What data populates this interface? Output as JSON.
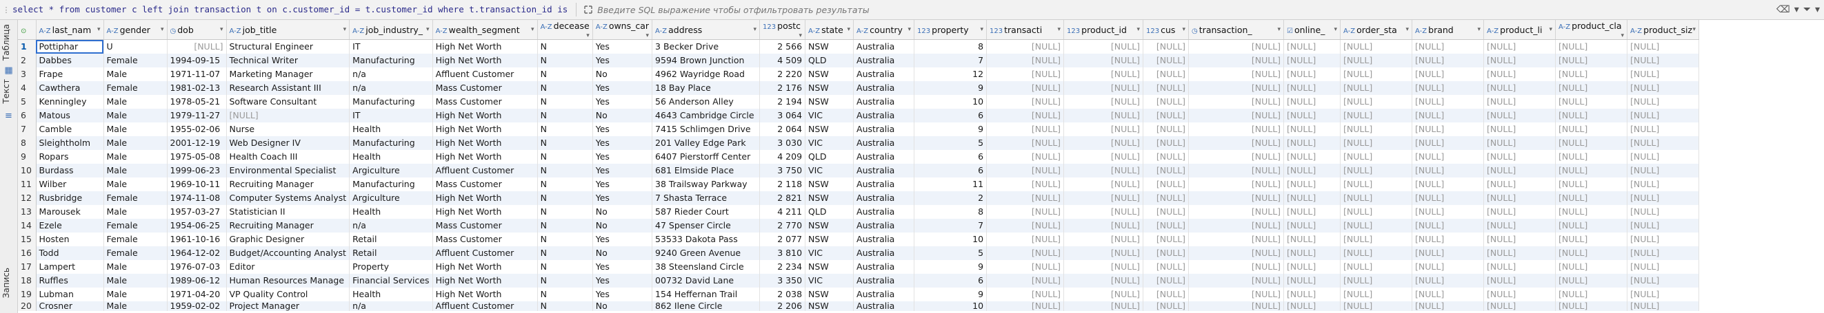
{
  "filter_bar": {
    "sql": "select * from customer c left join transaction t on c.customer_id = t.customer_id where t.transaction_id is",
    "placeholder": "Введите SQL выражение чтобы отфильтровать результаты"
  },
  "side_panel": {
    "tab_table": "Таблица",
    "tab_text": "Текст",
    "tab_record": "Запись"
  },
  "columns": [
    {
      "label": "last_nam",
      "type": "az"
    },
    {
      "label": "gender",
      "type": "az"
    },
    {
      "label": "dob",
      "type": "date"
    },
    {
      "label": "job_title",
      "type": "az"
    },
    {
      "label": "job_industry_",
      "type": "az"
    },
    {
      "label": "wealth_segment",
      "type": "az"
    },
    {
      "label": "decease",
      "type": "az"
    },
    {
      "label": "owns_car",
      "type": "az"
    },
    {
      "label": "address",
      "type": "az"
    },
    {
      "label": "postc",
      "type": "123"
    },
    {
      "label": "state",
      "type": "az"
    },
    {
      "label": "country",
      "type": "az"
    },
    {
      "label": "property",
      "type": "123"
    },
    {
      "label": "transacti",
      "type": "123"
    },
    {
      "label": "product_id",
      "type": "123"
    },
    {
      "label": "cus",
      "type": "123"
    },
    {
      "label": "transaction_",
      "type": "date"
    },
    {
      "label": "online_",
      "type": "check"
    },
    {
      "label": "order_sta",
      "type": "az"
    },
    {
      "label": "brand",
      "type": "az"
    },
    {
      "label": "product_li",
      "type": "az"
    },
    {
      "label": "product_cla",
      "type": "az"
    },
    {
      "label": "product_siz",
      "type": "az"
    }
  ],
  "null_text": "[NULL]",
  "rows": [
    [
      "1",
      "Pottiphar",
      "U",
      "[NULL]",
      "Structural Engineer",
      "IT",
      "High Net Worth",
      "N",
      "Yes",
      "3 Becker Drive",
      "2 566",
      "NSW",
      "Australia",
      "8"
    ],
    [
      "2",
      "Dabbes",
      "Female",
      "1994-09-15",
      "Technical Writer",
      "Manufacturing",
      "High Net Worth",
      "N",
      "Yes",
      "9594 Brown Junction",
      "4 509",
      "QLD",
      "Australia",
      "7"
    ],
    [
      "3",
      "Frape",
      "Male",
      "1971-11-07",
      "Marketing Manager",
      "n/a",
      "Affluent Customer",
      "N",
      "No",
      "4962 Wayridge Road",
      "2 220",
      "NSW",
      "Australia",
      "12"
    ],
    [
      "4",
      "Cawthera",
      "Female",
      "1981-02-13",
      "Research Assistant III",
      "n/a",
      "Mass Customer",
      "N",
      "Yes",
      "18 Bay Place",
      "2 176",
      "NSW",
      "Australia",
      "9"
    ],
    [
      "5",
      "Kenningley",
      "Male",
      "1978-05-21",
      "Software Consultant",
      "Manufacturing",
      "Mass Customer",
      "N",
      "Yes",
      "56 Anderson Alley",
      "2 194",
      "NSW",
      "Australia",
      "10"
    ],
    [
      "6",
      "Matous",
      "Male",
      "1979-11-27",
      "[NULL]",
      "IT",
      "High Net Worth",
      "N",
      "No",
      "4643 Cambridge Circle",
      "3 064",
      "VIC",
      "Australia",
      "6"
    ],
    [
      "7",
      "Camble",
      "Male",
      "1955-02-06",
      "Nurse",
      "Health",
      "High Net Worth",
      "N",
      "Yes",
      "7415 Schlimgen Drive",
      "2 064",
      "NSW",
      "Australia",
      "9"
    ],
    [
      "8",
      "Sleightholm",
      "Male",
      "2001-12-19",
      "Web Designer IV",
      "Manufacturing",
      "High Net Worth",
      "N",
      "Yes",
      "201 Valley Edge Park",
      "3 030",
      "VIC",
      "Australia",
      "5"
    ],
    [
      "9",
      "Ropars",
      "Male",
      "1975-05-08",
      "Health Coach III",
      "Health",
      "High Net Worth",
      "N",
      "Yes",
      "6407 Pierstorff Center",
      "4 209",
      "QLD",
      "Australia",
      "6"
    ],
    [
      "10",
      "Burdass",
      "Male",
      "1999-06-23",
      "Environmental Specialist",
      "Argiculture",
      "Affluent Customer",
      "N",
      "Yes",
      "681 Elmside Place",
      "3 750",
      "VIC",
      "Australia",
      "6"
    ],
    [
      "11",
      "Wilber",
      "Male",
      "1969-10-11",
      "Recruiting Manager",
      "Manufacturing",
      "Mass Customer",
      "N",
      "Yes",
      "38 Trailsway Parkway",
      "2 118",
      "NSW",
      "Australia",
      "11"
    ],
    [
      "12",
      "Rusbridge",
      "Female",
      "1974-11-08",
      "Computer Systems Analyst",
      "Argiculture",
      "High Net Worth",
      "N",
      "Yes",
      "7 Shasta Terrace",
      "2 821",
      "NSW",
      "Australia",
      "2"
    ],
    [
      "13",
      "Marousek",
      "Male",
      "1957-03-27",
      "Statistician II",
      "Health",
      "High Net Worth",
      "N",
      "No",
      "587 Rieder Court",
      "4 211",
      "QLD",
      "Australia",
      "8"
    ],
    [
      "14",
      "Ezele",
      "Female",
      "1954-06-25",
      "Recruiting Manager",
      "n/a",
      "Mass Customer",
      "N",
      "No",
      "47 Spenser Circle",
      "2 770",
      "NSW",
      "Australia",
      "7"
    ],
    [
      "15",
      "Hosten",
      "Female",
      "1961-10-16",
      "Graphic Designer",
      "Retail",
      "Mass Customer",
      "N",
      "Yes",
      "53533 Dakota Pass",
      "2 077",
      "NSW",
      "Australia",
      "10"
    ],
    [
      "16",
      "Todd",
      "Female",
      "1964-12-02",
      "Budget/Accounting Analyst",
      "Retail",
      "Affluent Customer",
      "N",
      "No",
      "9240 Green Avenue",
      "3 810",
      "VIC",
      "Australia",
      "5"
    ],
    [
      "17",
      "Lampert",
      "Male",
      "1976-07-03",
      "Editor",
      "Property",
      "High Net Worth",
      "N",
      "Yes",
      "38 Steensland Circle",
      "2 234",
      "NSW",
      "Australia",
      "9"
    ],
    [
      "18",
      "Ruffles",
      "Male",
      "1989-06-12",
      "Human Resources Manage",
      "Financial Services",
      "High Net Worth",
      "N",
      "Yes",
      "00732 David Lane",
      "3 350",
      "VIC",
      "Australia",
      "6"
    ],
    [
      "19",
      "Lubman",
      "Male",
      "1971-04-20",
      "VP Quality Control",
      "Health",
      "High Net Worth",
      "N",
      "Yes",
      "154 Heffernan Trail",
      "2 038",
      "NSW",
      "Australia",
      "9"
    ],
    [
      "20",
      "Crosner",
      "Male",
      "1959-02-02",
      "Project Manager",
      "n/a",
      "Affluent Customer",
      "N",
      "No",
      "862 Ilene Circle",
      "2 206",
      "NSW",
      "Australia",
      "10"
    ]
  ],
  "colors": {
    "header_bg": "#f3f3f3",
    "alt_row": "#eef3fa",
    "accent": "#2f6fd0",
    "null_text": "#9a9a9a"
  }
}
